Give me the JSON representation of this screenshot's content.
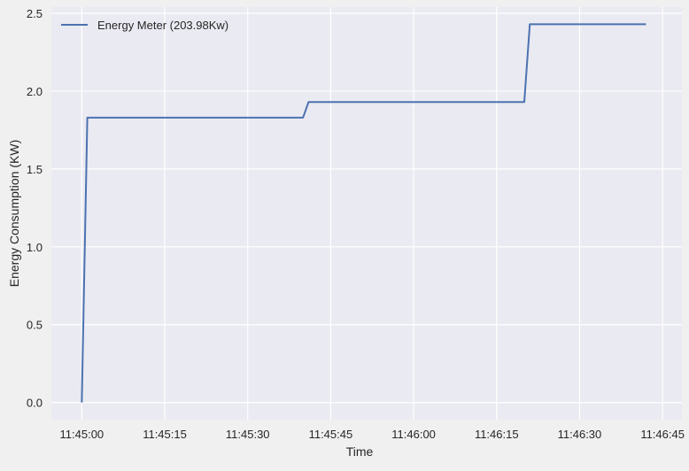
{
  "chart_data": {
    "type": "line",
    "title": "",
    "xlabel": "Time",
    "ylabel": "Energy Consumption (KW)",
    "x_tick_labels": [
      "11:45:00",
      "11:45:15",
      "11:45:30",
      "11:45:45",
      "11:46:00",
      "11:46:15",
      "11:46:30",
      "11:46:45"
    ],
    "x_ticks_seconds": [
      0,
      15,
      30,
      45,
      60,
      75,
      90,
      105
    ],
    "xlim": [
      -5.5,
      108.5
    ],
    "y_ticks": [
      0.0,
      0.5,
      1.0,
      1.5,
      2.0,
      2.5
    ],
    "y_tick_labels": [
      "0.0",
      "0.5",
      "1.0",
      "1.5",
      "2.0",
      "2.5"
    ],
    "ylim": [
      -0.11,
      2.54
    ],
    "grid": true,
    "legend_position": "top-left",
    "series": [
      {
        "name": "Energy Meter (203.98Kw)",
        "color": "#4c72b0",
        "x": [
          "11:45:00",
          "11:45:01",
          "11:45:40",
          "11:45:41",
          "11:46:20",
          "11:46:21",
          "11:46:42"
        ],
        "x_seconds": [
          0,
          1,
          40,
          41,
          80,
          81,
          102
        ],
        "values": [
          0.0,
          1.83,
          1.83,
          1.93,
          1.93,
          2.43,
          2.43
        ]
      }
    ]
  },
  "colors": {
    "figure_bg": "#f0f0f0",
    "plot_bg": "#eaeaf2",
    "grid": "#ffffff",
    "text": "#262626"
  }
}
